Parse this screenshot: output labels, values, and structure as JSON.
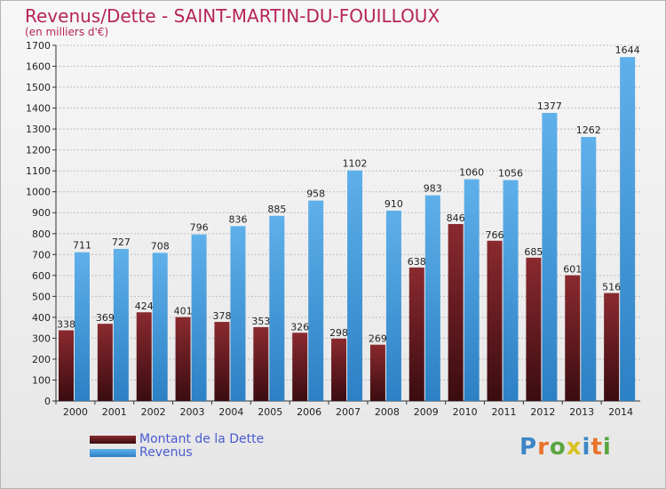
{
  "header": {
    "title": "Revenus/Dette - SAINT-MARTIN-DU-FOUILLOUX",
    "subtitle": "(en milliers d'€)"
  },
  "legend": {
    "items": [
      {
        "label": "Montant de la Dette"
      },
      {
        "label": "Revenus"
      }
    ]
  },
  "logo": {
    "text": "Proxiti",
    "letter_colors": [
      "#3d86c6",
      "#e8742a",
      "#5aa640",
      "#d9c221",
      "#3d86c6",
      "#e8742a",
      "#5aa640"
    ]
  },
  "colors": {
    "dette_top": "#8a2a2f",
    "dette_bottom": "#3a0c10",
    "revenus_top": "#5fb0ea",
    "revenus_bottom": "#2c80c4",
    "legend_text": "#4a5bd0",
    "title": "#b6245a"
  },
  "chart_data": {
    "type": "bar",
    "title": "Revenus/Dette - SAINT-MARTIN-DU-FOUILLOUX",
    "ylabel": "(en milliers d'€)",
    "xlabel": "",
    "ylim": [
      0,
      1700
    ],
    "ytick_step": 100,
    "grid": true,
    "legend_position": "bottom-left",
    "categories": [
      "2000",
      "2001",
      "2002",
      "2003",
      "2004",
      "2005",
      "2006",
      "2007",
      "2008",
      "2009",
      "2010",
      "2011",
      "2012",
      "2013",
      "2014"
    ],
    "series": [
      {
        "name": "Montant de la Dette",
        "values": [
          338,
          369,
          424,
          401,
          378,
          353,
          326,
          298,
          269,
          638,
          846,
          766,
          685,
          601,
          516
        ]
      },
      {
        "name": "Revenus",
        "values": [
          711,
          727,
          708,
          796,
          836,
          885,
          958,
          1102,
          910,
          983,
          1060,
          1056,
          1377,
          1262,
          1644
        ]
      }
    ]
  }
}
